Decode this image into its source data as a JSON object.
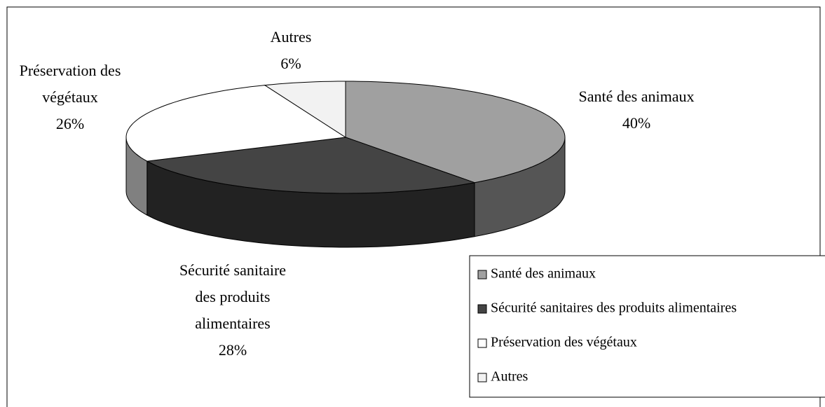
{
  "chart_data": {
    "type": "pie3d",
    "categories": [
      "Santé des animaux",
      "Sécurité sanitaires des produits alimentaires",
      "Préservation des végétaux",
      "Autres"
    ],
    "slice_labels": [
      [
        "Santé des animaux"
      ],
      [
        "Sécurité sanitaire",
        "des produits",
        "alimentaires"
      ],
      [
        "Préservation des",
        "végétaux"
      ],
      [
        "Autres"
      ]
    ],
    "values": [
      40,
      28,
      26,
      6
    ],
    "value_labels": [
      "40%",
      "28%",
      "26%",
      "6%"
    ],
    "colors": [
      "#a0a0a0",
      "#444444",
      "#ffffff",
      "#f2f2f2"
    ],
    "side_colors": [
      "#555555",
      "#222222",
      "#808080",
      "#bbbbbb"
    ]
  }
}
